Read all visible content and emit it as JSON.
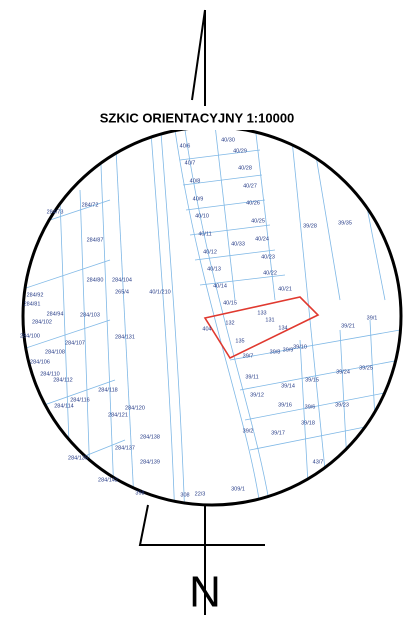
{
  "title": "SZKIC ORIENTACYJNY 1:10000",
  "north_label": "N",
  "parcels": [
    "40/30",
    "40/6",
    "40/29",
    "40/7",
    "40/28",
    "40/8",
    "40/27",
    "40/9",
    "40/26",
    "40/10",
    "40/25",
    "40/11",
    "40/24",
    "40/12",
    "40/33",
    "40/23",
    "40/13",
    "40/22",
    "40/14",
    "40/21",
    "40/15",
    "39/28",
    "39/35",
    "40/1/210",
    "265/4",
    "284/72",
    "284/87",
    "284/73",
    "132",
    "133",
    "131",
    "134",
    "135",
    "404",
    "39/7",
    "39/8",
    "39/9",
    "39/10",
    "39/21",
    "39/11",
    "39/12",
    "39/14",
    "39/15",
    "39/24",
    "39/25",
    "39/6",
    "39/16",
    "39/23",
    "39/2",
    "39/17",
    "39/18",
    "39/1",
    "308",
    "309/1",
    "43/7",
    "284/139",
    "284/137",
    "284/138",
    "284/120",
    "284/121",
    "284/118",
    "284/116",
    "284/114",
    "284/112",
    "284/110",
    "284/108",
    "284/102",
    "284/100",
    "284/94",
    "284/92",
    "284/81",
    "284/80",
    "284/131",
    "284/104",
    "284/103",
    "284/107",
    "284/106",
    "284/135",
    "284/142",
    "398",
    "22/3"
  ]
}
